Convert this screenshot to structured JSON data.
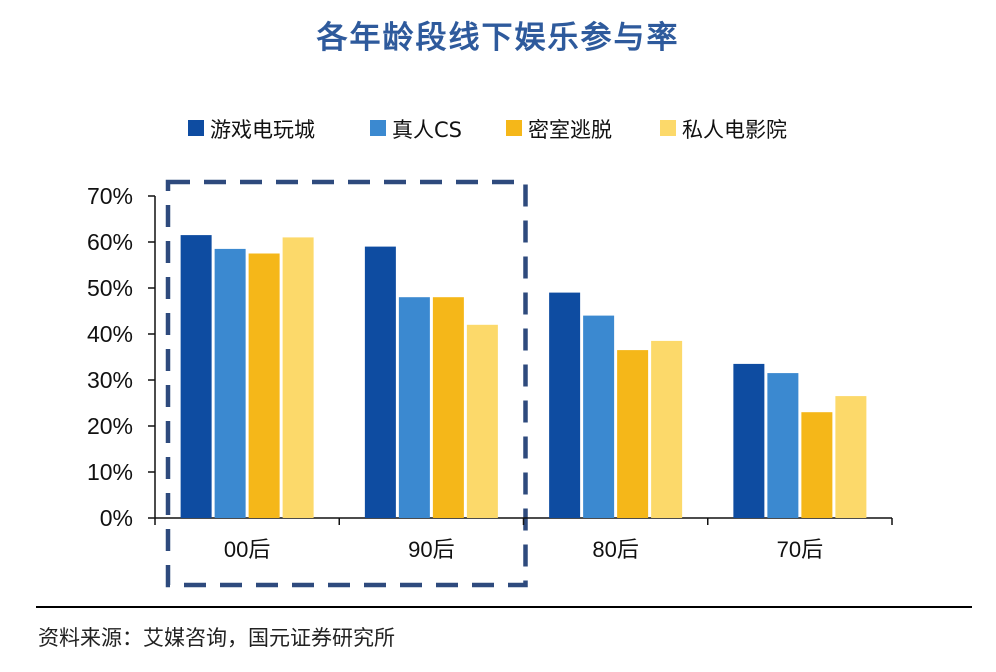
{
  "title": "各年龄段线下娱乐参与率",
  "source": "资料来源：艾媒咨询，国元证券研究所",
  "chart_data": {
    "type": "bar",
    "title": "各年龄段线下娱乐参与率",
    "categories": [
      "00后",
      "90后",
      "80后",
      "70后"
    ],
    "series": [
      {
        "name": "游戏电玩城",
        "color": "#0E4CA1",
        "values": [
          61.5,
          59.0,
          49.0,
          33.5
        ]
      },
      {
        "name": "真人CS",
        "color": "#3B89D0",
        "values": [
          58.5,
          48.0,
          44.0,
          31.5
        ]
      },
      {
        "name": "密室逃脱",
        "color": "#F5B719",
        "values": [
          57.5,
          48.0,
          36.5,
          23.0
        ]
      },
      {
        "name": "私人电影院",
        "color": "#FCD96A",
        "values": [
          61.0,
          42.0,
          38.5,
          26.5
        ]
      }
    ],
    "ylim": [
      0,
      70
    ],
    "yticks": [
      "0%",
      "10%",
      "20%",
      "30%",
      "40%",
      "50%",
      "60%",
      "70%"
    ],
    "ytick_values": [
      0,
      10,
      20,
      30,
      40,
      50,
      60,
      70
    ],
    "highlight": {
      "categories": [
        "00后",
        "90后"
      ],
      "style": "dashed",
      "color": "#2E4A7D"
    },
    "legend_position": "top",
    "grid": false
  }
}
